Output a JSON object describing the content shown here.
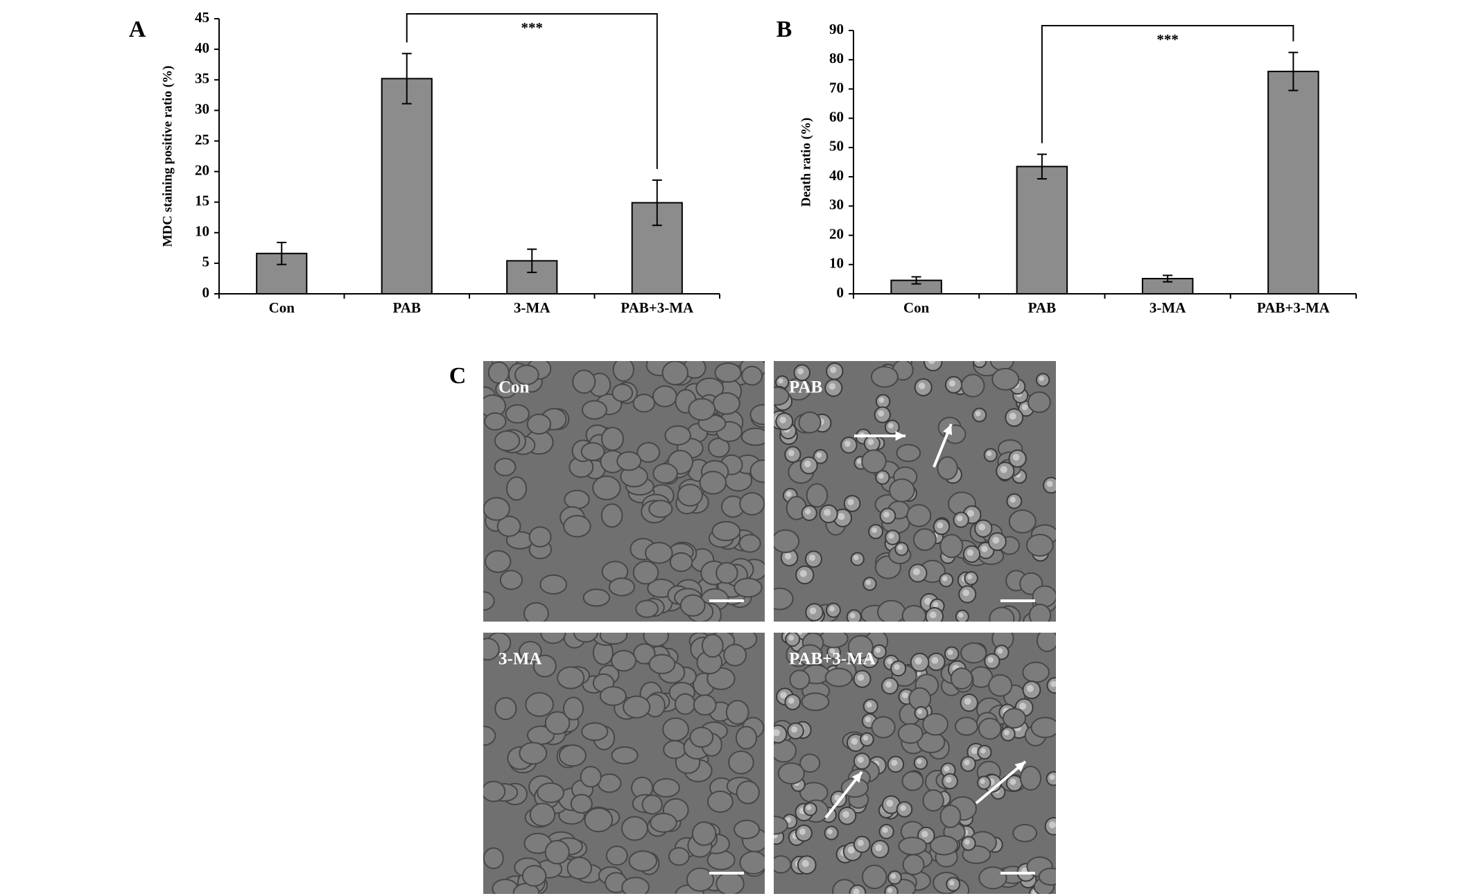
{
  "chart_data": [
    {
      "type": "bar",
      "label": "A",
      "y_label": "MDC staining positive ratio (%)",
      "categories": [
        "Con",
        "PAB",
        "3-MA",
        "PAB+3-MA"
      ],
      "values": [
        6.6,
        35.2,
        5.4,
        14.9
      ],
      "errors": [
        1.8,
        4.1,
        1.9,
        3.7
      ],
      "color": "#8c8c8c",
      "ylim": [
        0,
        45
      ],
      "yticks": [
        0,
        5,
        10,
        15,
        20,
        25,
        30,
        35,
        40,
        45
      ],
      "annotation": "***"
    },
    {
      "type": "bar",
      "label": "B",
      "y_label": "Death ratio (%)",
      "categories": [
        "Con",
        "PAB",
        "3-MA",
        "PAB+3-MA"
      ],
      "values": [
        4.6,
        43.5,
        5.2,
        76.0
      ],
      "errors": [
        1.2,
        4.2,
        1.1,
        6.5
      ],
      "color": "#8c8c8c",
      "ylim": [
        0,
        90
      ],
      "yticks": [
        0,
        10,
        20,
        30,
        40,
        50,
        60,
        70,
        80,
        90
      ],
      "annotation": "***"
    }
  ],
  "panel_c": {
    "label": "C",
    "images": [
      "Con",
      "PAB",
      "3-MA",
      "PAB+3-MA"
    ]
  }
}
